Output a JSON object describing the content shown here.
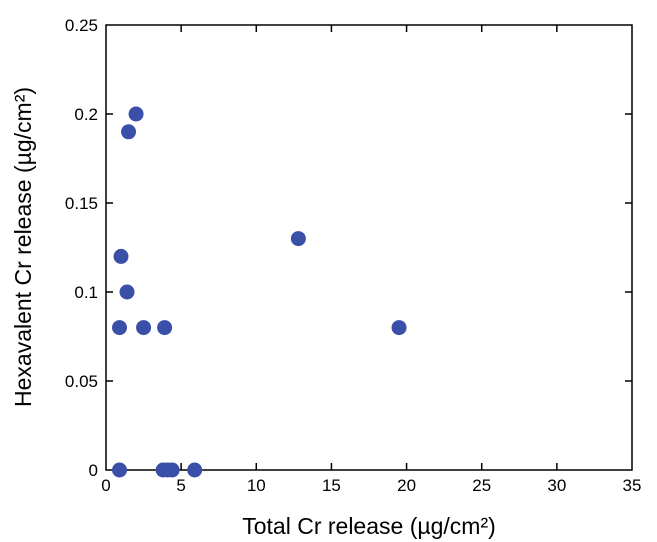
{
  "chart_data": {
    "type": "scatter",
    "xlabel": "Total Cr release (µg/cm²)",
    "ylabel": "Hexavalent Cr release (µg/cm²)",
    "xlim": [
      0,
      35
    ],
    "ylim": [
      0,
      0.25
    ],
    "x_ticks": [
      "0",
      "5",
      "10",
      "15",
      "20",
      "25",
      "30",
      "35"
    ],
    "y_ticks": [
      "0",
      "0.05",
      "0.1",
      "0.15",
      "0.2",
      "0.25"
    ],
    "grid": false,
    "marker_color": "#3a4fa8",
    "points": [
      {
        "x": 2.0,
        "y": 0.2
      },
      {
        "x": 1.5,
        "y": 0.19
      },
      {
        "x": 1.0,
        "y": 0.12
      },
      {
        "x": 1.4,
        "y": 0.1
      },
      {
        "x": 0.9,
        "y": 0.08
      },
      {
        "x": 2.5,
        "y": 0.08
      },
      {
        "x": 3.9,
        "y": 0.08
      },
      {
        "x": 0.9,
        "y": 0.0
      },
      {
        "x": 3.8,
        "y": 0.0
      },
      {
        "x": 4.1,
        "y": 0.0
      },
      {
        "x": 4.4,
        "y": 0.0
      },
      {
        "x": 5.9,
        "y": 0.0
      },
      {
        "x": 12.8,
        "y": 0.13
      },
      {
        "x": 19.5,
        "y": 0.08
      }
    ]
  }
}
